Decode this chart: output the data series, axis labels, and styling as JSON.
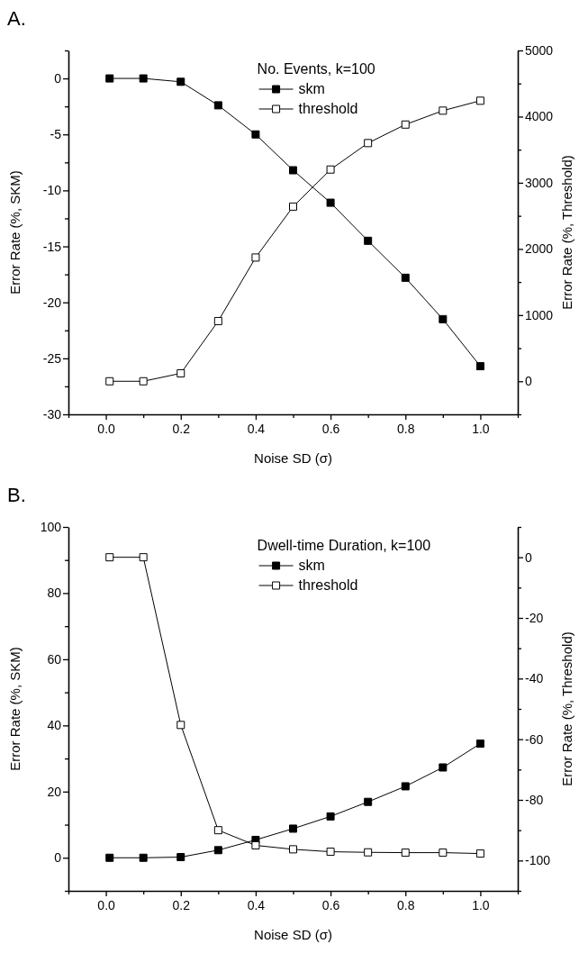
{
  "chart_data": [
    {
      "type": "line",
      "title": "A.",
      "xlabel": "Noise SD (σ)",
      "ylabel": "Error Rate  (%, SKM)",
      "y2label": "Error Rate (%, Threshold)",
      "legend_title": "No. Events, k=100",
      "legend": "top",
      "marker": "square",
      "line_style": "solid",
      "x": [
        0.01,
        0.1,
        0.2,
        0.3,
        0.4,
        0.5,
        0.6,
        0.7,
        0.8,
        0.9,
        1.0
      ],
      "xlim": [
        -0.1,
        1.1
      ],
      "xticks": [
        {
          "value": -0.1,
          "label": null
        },
        {
          "value": 0,
          "label": "0.0"
        },
        {
          "value": 0.1,
          "label": null
        },
        {
          "value": 0.2,
          "label": "0.2"
        },
        {
          "value": 0.3,
          "label": null
        },
        {
          "value": 0.4,
          "label": "0.4"
        },
        {
          "value": 0.5,
          "label": null
        },
        {
          "value": 0.6,
          "label": "0.6"
        },
        {
          "value": 0.7,
          "label": null
        },
        {
          "value": 0.8,
          "label": "0.8"
        },
        {
          "value": 0.9,
          "label": null
        },
        {
          "value": 1.0,
          "label": "1.0"
        },
        {
          "value": 1.1,
          "label": null
        }
      ],
      "ylim": [
        -30,
        2.5
      ],
      "yticks": [
        -30,
        {
          "value": -27.5,
          "label": null
        },
        -25,
        {
          "value": -22.5,
          "label": null
        },
        -20,
        {
          "value": -17.5,
          "label": null
        },
        -15,
        {
          "value": -12.5,
          "label": null
        },
        -10,
        {
          "value": -7.5,
          "label": null
        },
        -5,
        {
          "value": -2.5,
          "label": null
        },
        0,
        {
          "value": 2.5,
          "label": null
        }
      ],
      "y2lim": [
        -500,
        5000
      ],
      "y2ticks": [
        {
          "value": -500,
          "label": null
        },
        0,
        {
          "value": 500,
          "label": null
        },
        1000,
        {
          "value": 1500,
          "label": null
        },
        2000,
        {
          "value": 2500,
          "label": null
        },
        3000,
        {
          "value": 3500,
          "label": null
        },
        4000,
        {
          "value": 4500,
          "label": null
        },
        5000
      ],
      "series": [
        {
          "name": "skm",
          "color": "#000000",
          "values": [
            0,
            0,
            -0.3,
            -2.4,
            -5,
            -8.2,
            -11.1,
            -14.5,
            -17.8,
            -21.5,
            -25.7
          ]
        },
        {
          "name": "threshold",
          "color": "#000000",
          "axis": "y2",
          "values": [
            0,
            0,
            120,
            910,
            1870,
            2640,
            3200,
            3600,
            3880,
            4090,
            4240
          ]
        }
      ]
    },
    {
      "type": "line",
      "title": "B.",
      "xlabel": "Noise SD (σ)",
      "ylabel": "Error Rate  (%, SKM)",
      "y2label": "Error Rate (%, Threshold)",
      "legend_title": "Dwell-time Duration, k=100",
      "legend": "top",
      "marker": "square",
      "line_style": "solid",
      "x": [
        0.01,
        0.1,
        0.2,
        0.3,
        0.4,
        0.5,
        0.6,
        0.7,
        0.8,
        0.9,
        1.0
      ],
      "xlim": [
        -0.1,
        1.1
      ],
      "xticks": [
        {
          "value": -0.1,
          "label": null
        },
        {
          "value": 0,
          "label": "0.0"
        },
        {
          "value": 0.1,
          "label": null
        },
        {
          "value": 0.2,
          "label": "0.2"
        },
        {
          "value": 0.3,
          "label": null
        },
        {
          "value": 0.4,
          "label": "0.4"
        },
        {
          "value": 0.5,
          "label": null
        },
        {
          "value": 0.6,
          "label": "0.6"
        },
        {
          "value": 0.7,
          "label": null
        },
        {
          "value": 0.8,
          "label": "0.8"
        },
        {
          "value": 0.9,
          "label": null
        },
        {
          "value": 1.0,
          "label": "1.0"
        },
        {
          "value": 1.1,
          "label": null
        }
      ],
      "ylim": [
        -10,
        100
      ],
      "yticks": [
        {
          "value": -10,
          "label": null
        },
        0,
        {
          "value": 10,
          "label": null
        },
        20,
        {
          "value": 30,
          "label": null
        },
        40,
        {
          "value": 50,
          "label": null
        },
        60,
        {
          "value": 70,
          "label": null
        },
        80,
        {
          "value": 90,
          "label": null
        },
        100
      ],
      "y2lim": [
        -110,
        10
      ],
      "y2ticks": [
        {
          "value": -110,
          "label": null
        },
        -100,
        {
          "value": -90,
          "label": null
        },
        -80,
        {
          "value": -70,
          "label": null
        },
        -60,
        {
          "value": -50,
          "label": null
        },
        -40,
        {
          "value": -30,
          "label": null
        },
        -20,
        {
          "value": -10,
          "label": null
        },
        0,
        {
          "value": 10,
          "label": null
        }
      ],
      "series": [
        {
          "name": "skm",
          "color": "#000000",
          "values": [
            0,
            0,
            0.2,
            2.3,
            5.4,
            8.8,
            12.5,
            16.9,
            21.6,
            27.3,
            34.5
          ]
        },
        {
          "name": "threshold",
          "color": "#000000",
          "axis": "y2",
          "values": [
            0,
            0,
            -55.3,
            -90,
            -95,
            -96.3,
            -97.1,
            -97.3,
            -97.4,
            -97.4,
            -97.7
          ]
        }
      ]
    }
  ]
}
